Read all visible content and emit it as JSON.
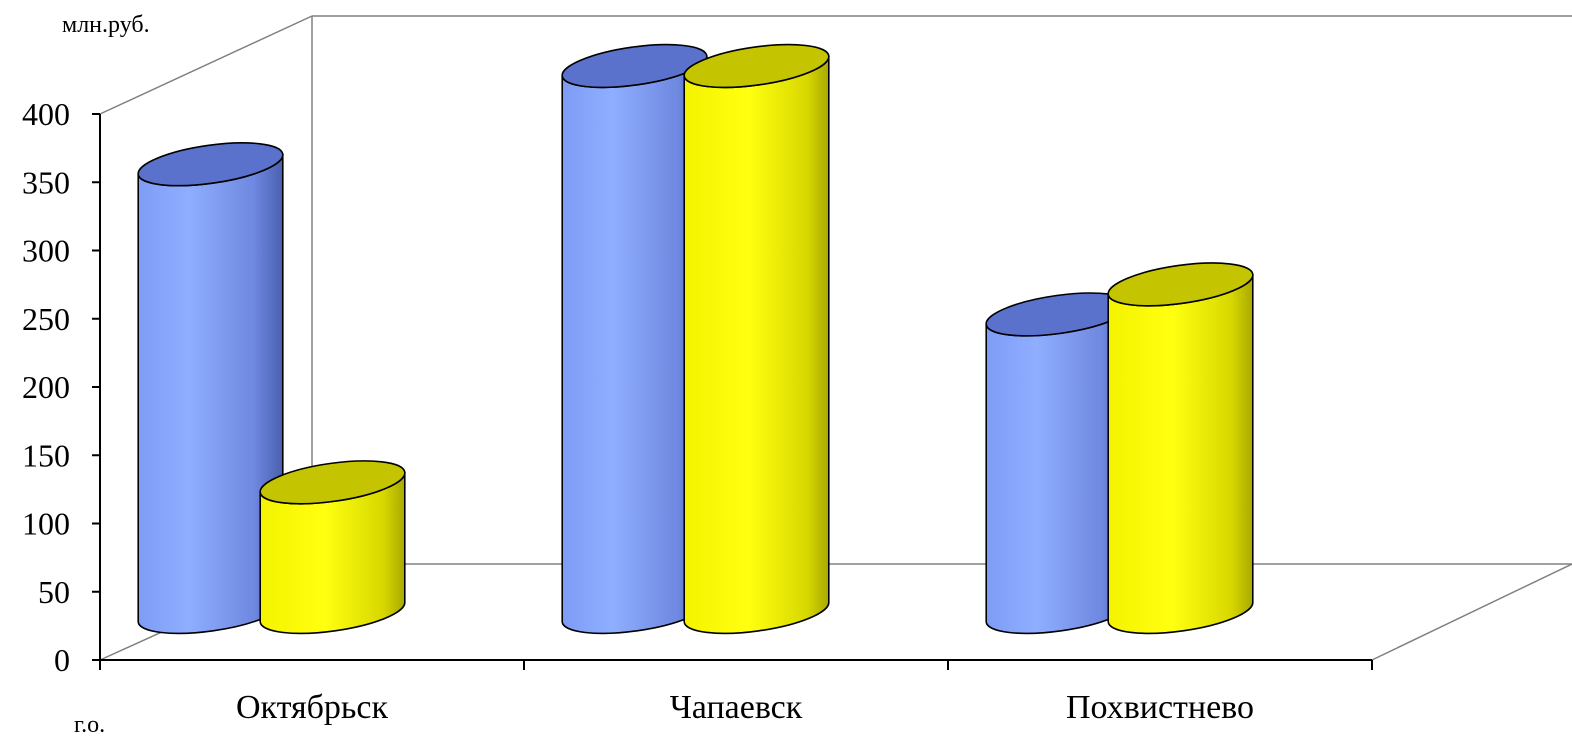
{
  "chart_data": {
    "type": "bar",
    "style": "3d-cylinder",
    "ylabel": "млн.руб.",
    "xlabel": "г.о.",
    "ylim": [
      0,
      400
    ],
    "yticks": [
      0,
      50,
      100,
      150,
      200,
      250,
      300,
      350,
      400
    ],
    "categories": [
      "Октябрьск",
      "Чапаевск",
      "Похвистнево"
    ],
    "series": [
      {
        "color": "#8aa6ff",
        "values": [
          328,
          400,
          218
        ]
      },
      {
        "color": "#ffff00",
        "values": [
          95,
          400,
          240
        ]
      }
    ],
    "legend": "none",
    "grid": false
  }
}
